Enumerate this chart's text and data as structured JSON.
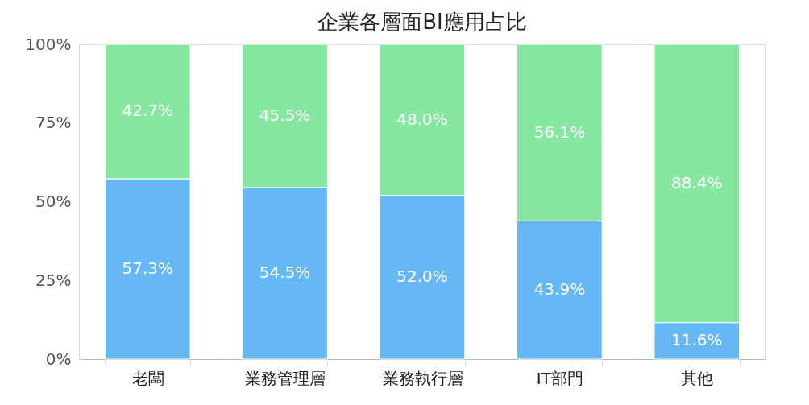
{
  "chart_data": {
    "type": "bar",
    "title": "企業各層面BI應用占比",
    "stacked": true,
    "categories": [
      "老闆",
      "業務管理層",
      "業務執行層",
      "IT部門",
      "其他"
    ],
    "series": [
      {
        "color": "#66b8f4",
        "values": [
          57.3,
          54.5,
          52.0,
          43.9,
          11.6
        ],
        "value_labels": [
          "57.3%",
          "54.5%",
          "52.0%",
          "43.9%",
          "11.6%"
        ]
      },
      {
        "color": "#86e8a0",
        "values": [
          42.7,
          45.5,
          48.0,
          56.1,
          88.4
        ],
        "value_labels": [
          "42.7%",
          "45.5%",
          "48.0%",
          "56.1%",
          "88.4%"
        ]
      }
    ],
    "ylim": [
      0,
      100
    ],
    "yticks": [
      {
        "value": 0,
        "label": "0%"
      },
      {
        "value": 25,
        "label": "25%"
      },
      {
        "value": 50,
        "label": "50%"
      },
      {
        "value": 75,
        "label": "75%"
      },
      {
        "value": 100,
        "label": "100%"
      }
    ],
    "grid": false,
    "legend": false
  }
}
